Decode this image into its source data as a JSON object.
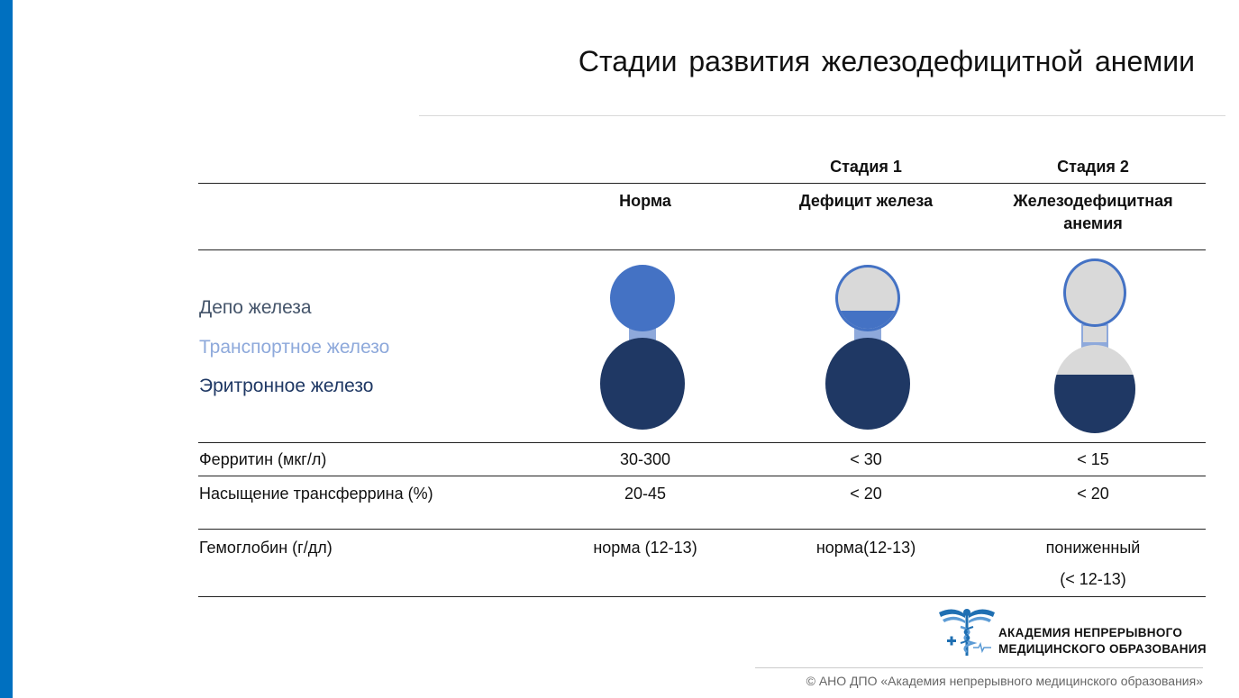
{
  "title": "Стадии развития железодефицитной анемии",
  "columns": {
    "stage1": "Стадия 1",
    "stage2": "Стадия 2",
    "norm": "Норма",
    "deficit": "Дефицит железа",
    "ida_line1": "Железодефицитная",
    "ida_line2": "анемия"
  },
  "legend": {
    "depot": "Депо железа",
    "transport": "Транспортное железо",
    "erythron": "Эритронное железо"
  },
  "rows": [
    {
      "label": "Ферритин (мкг/л)",
      "norm": "30-300",
      "stage1": "< 30",
      "stage2": "< 15"
    },
    {
      "label": "Насыщение трансферрина (%)",
      "norm": "20-45",
      "stage1": "< 20",
      "stage2": "< 20"
    },
    {
      "label": "Гемоглобин  (г/дл)",
      "norm": "норма  (12-13)",
      "stage1": "норма(12-13)",
      "stage2": "пониженный",
      "stage2_line2": "(< 12-13)"
    }
  ],
  "illustrations": {
    "norm": {
      "depot_fill": 1.0,
      "transport_fill": 1.0,
      "erythron_fill": 1.0
    },
    "stage1": {
      "depot_fill": 0.3,
      "transport_fill": 1.0,
      "erythron_fill": 1.0
    },
    "stage2": {
      "depot_fill": 0.0,
      "transport_fill": 0.3,
      "erythron_fill": 0.66
    }
  },
  "colors": {
    "accent_bar": "#0070C0",
    "depot": "#4472C4",
    "transport": "#8EA9DB",
    "erythron": "#1F3864",
    "empty": "#D9D9D9",
    "legend_depot": "#44546A",
    "legend_transport": "#8EA9DB",
    "legend_erythron": "#1F3864"
  },
  "logo": {
    "line1": "АКАДЕМИЯ НЕПРЕРЫВНОГО",
    "line2": "МЕДИЦИНСКОГО ОБРАЗОВАНИЯ"
  },
  "copyright": "© АНО ДПО «Академия непрерывного медицинского образования»"
}
